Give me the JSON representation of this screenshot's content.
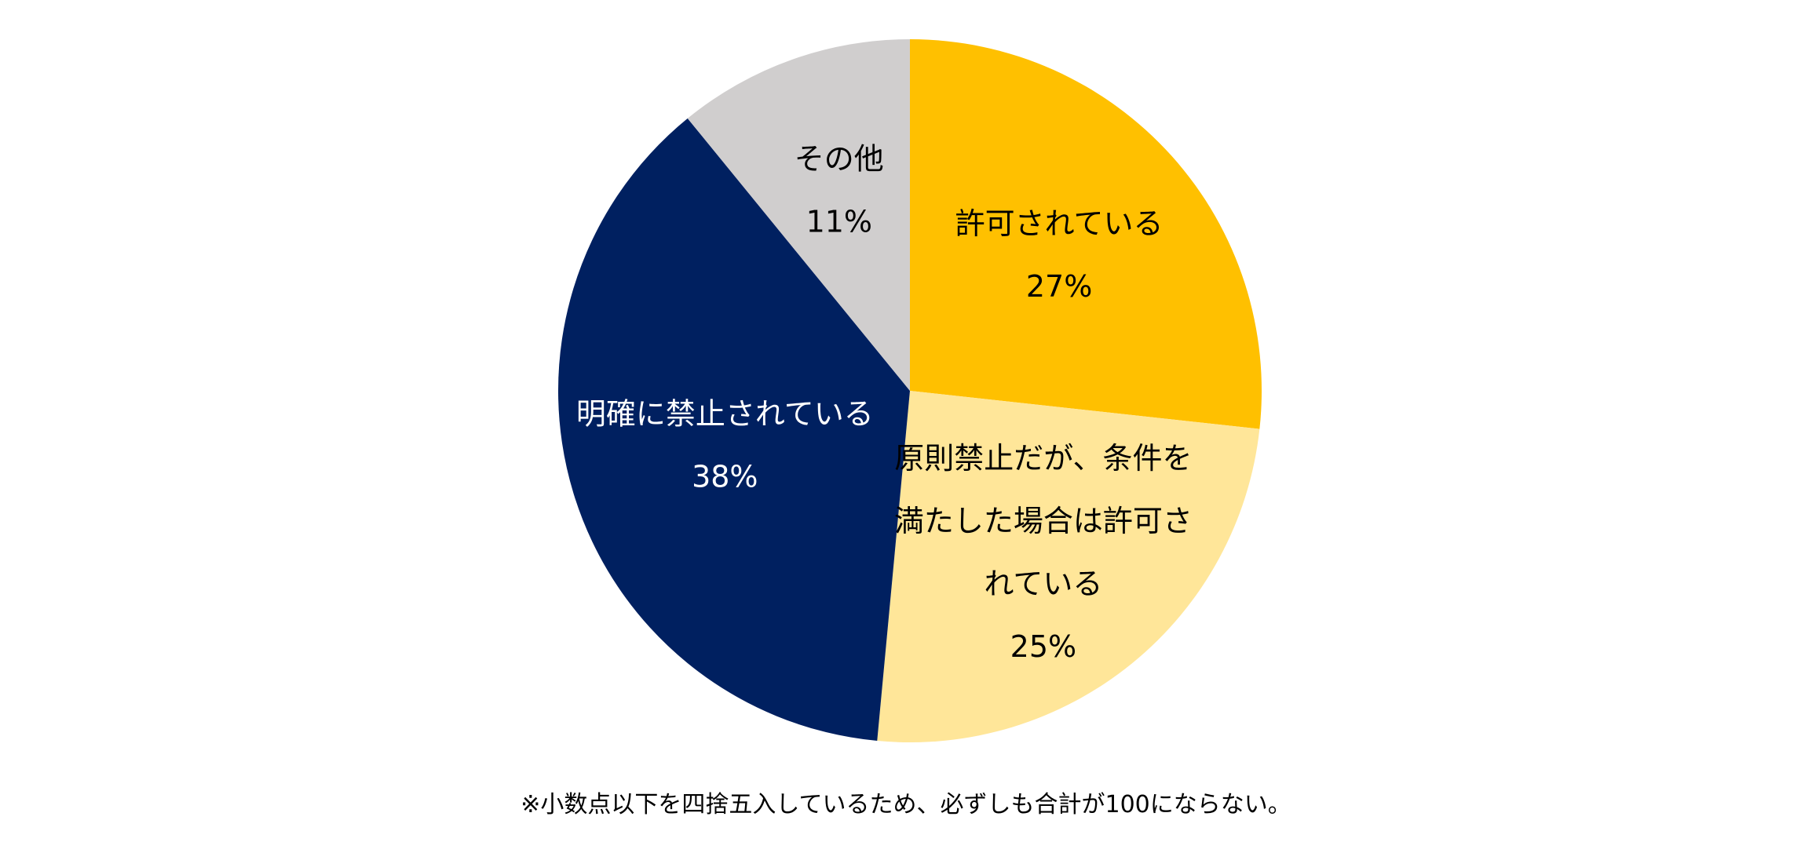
{
  "chart_data": {
    "type": "pie",
    "start_angle": "12 o'clock",
    "direction": "clockwise",
    "slices": [
      {
        "label_lines": [
          "許可されている"
        ],
        "value": 27,
        "value_label": "27%",
        "color": "#FFC000",
        "text_color": "#000000"
      },
      {
        "label_lines": [
          "原則禁止だが、条件を",
          "満たした場合は許可さ",
          "れている"
        ],
        "value": 25,
        "value_label": "25%",
        "color": "#FFE699",
        "text_color": "#000000"
      },
      {
        "label_lines": [
          "明確に禁止されている"
        ],
        "value": 38,
        "value_label": "38%",
        "color": "#002060",
        "text_color": "#FFFFFF"
      },
      {
        "label_lines": [
          "その他"
        ],
        "value": 11,
        "value_label": "11%",
        "color": "#D0CECE",
        "text_color": "#000000"
      }
    ]
  },
  "footnote": "※小数点以下を四捨五入しているため、必ずしも合計が100にならない。"
}
